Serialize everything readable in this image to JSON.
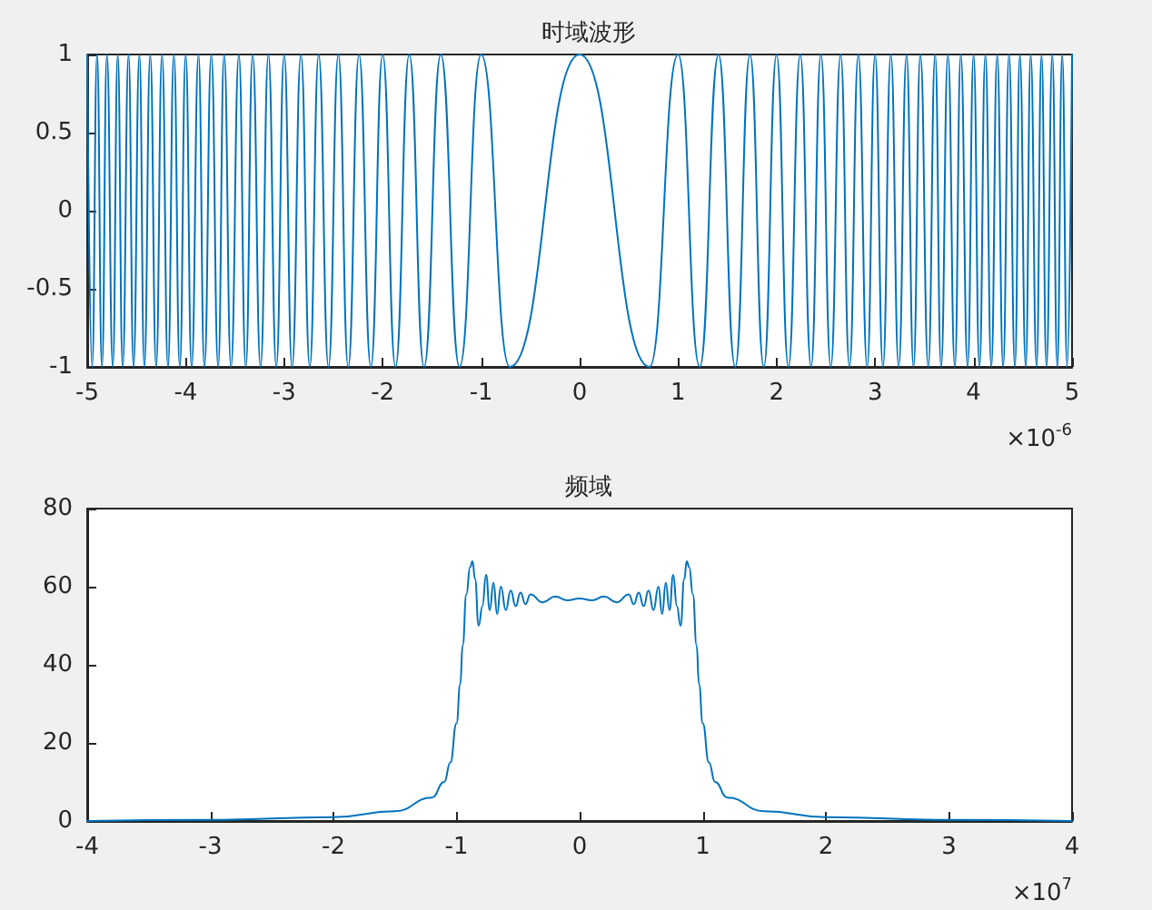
{
  "chart_data": [
    {
      "type": "line",
      "title": "时域波形",
      "annotations": [
        "×10$^{-6}$"
      ],
      "color": "#0072bd",
      "grid": false,
      "marker": "none",
      "line_style": "solid",
      "x": [
        -5,
        -4.95,
        -4.9,
        -4.85,
        -4.8,
        -4.74,
        -4.69,
        -4.64,
        -4.58,
        -4.53,
        -4.47,
        -4.42,
        -4.36,
        -4.3,
        -4.24,
        -4.18,
        -4.12,
        -4.06,
        -4,
        -3.94,
        -3.87,
        -3.81,
        -3.74,
        -3.67,
        -3.61,
        -3.54,
        -3.46,
        -3.39,
        -3.32,
        -3.24,
        -3.16,
        -3.08,
        -3,
        -2.92,
        -2.83,
        -2.74,
        -2.65,
        -2.55,
        -2.45,
        -2.35,
        -2.24,
        -2.12,
        -2,
        -1.87,
        -1.73,
        -1.58,
        -1.41,
        -1.22,
        -1,
        -0.71,
        0,
        0.71,
        1,
        1.22,
        1.41,
        1.58,
        1.73,
        1.87,
        2,
        2.12,
        2.24,
        2.35,
        2.45,
        2.55,
        2.65,
        2.74,
        2.83,
        2.92,
        3,
        3.08,
        3.16,
        3.24,
        3.32,
        3.39,
        3.46,
        3.54,
        3.61,
        3.67,
        3.74,
        3.81,
        3.87,
        3.94,
        4,
        4.06,
        4.12,
        4.18,
        4.24,
        4.3,
        4.36,
        4.42,
        4.47,
        4.53,
        4.58,
        4.64,
        4.69,
        4.74,
        4.8,
        4.85,
        4.9,
        4.95,
        5
      ],
      "values": [
        1,
        -1,
        1,
        -1,
        1,
        -1,
        1,
        -1,
        1,
        -1,
        1,
        -1,
        1,
        -1,
        1,
        -1,
        1,
        -1,
        1,
        -1,
        1,
        -1,
        1,
        -1,
        1,
        -1,
        1,
        -1,
        1,
        -1,
        1,
        -1,
        1,
        -1,
        1,
        -1,
        1,
        -1,
        1,
        -1,
        1,
        -1,
        1,
        -1,
        1,
        -1,
        1,
        -1,
        1,
        -1,
        1,
        -1,
        1,
        -1,
        1,
        -1,
        1,
        -1,
        1,
        -1,
        1,
        -1,
        1,
        -1,
        1,
        -1,
        1,
        -1,
        1,
        -1,
        1,
        -1,
        1,
        -1,
        1,
        -1,
        1,
        -1,
        1,
        -1,
        1,
        -1,
        1,
        -1,
        1,
        -1,
        1,
        -1,
        1,
        -1,
        1,
        -1,
        1,
        -1,
        1,
        -1,
        1,
        -1,
        1,
        -1,
        1
      ],
      "xlim": [
        -5,
        5
      ],
      "xticks": [
        -5,
        -4,
        -3,
        -2,
        -1,
        0,
        1,
        2,
        3,
        4,
        5
      ],
      "ylim": [
        -1,
        1
      ],
      "yticks": [
        -1,
        -0.5,
        0,
        0.5,
        1
      ]
    },
    {
      "type": "line",
      "title": "频域",
      "annotations": [
        "×10$^{7}$"
      ],
      "color": "#0072bd",
      "grid": false,
      "marker": "none",
      "line_style": "solid",
      "x": [
        -4,
        -3,
        -2,
        -1.5,
        -1.2,
        -1.1,
        -1.05,
        -1,
        -0.97,
        -0.95,
        -0.92,
        -0.89,
        -0.87,
        -0.85,
        -0.82,
        -0.79,
        -0.76,
        -0.73,
        -0.7,
        -0.67,
        -0.64,
        -0.6,
        -0.56,
        -0.52,
        -0.48,
        -0.44,
        -0.4,
        -0.3,
        -0.2,
        -0.1,
        0,
        0.1,
        0.2,
        0.3,
        0.4,
        0.44,
        0.48,
        0.52,
        0.56,
        0.6,
        0.64,
        0.67,
        0.7,
        0.73,
        0.76,
        0.79,
        0.82,
        0.85,
        0.87,
        0.89,
        0.92,
        0.95,
        0.97,
        1,
        1.05,
        1.1,
        1.2,
        1.5,
        2,
        3,
        4
      ],
      "values": [
        0,
        0.3,
        1,
        2.5,
        6,
        10,
        15,
        25,
        35,
        45,
        58,
        65,
        66.5,
        62,
        50,
        55,
        63,
        54,
        61,
        53,
        60,
        54,
        59,
        55,
        58.5,
        55.5,
        58,
        56,
        57.5,
        56.5,
        57,
        56.5,
        57.5,
        56,
        58,
        55.5,
        58.5,
        55,
        59,
        54,
        60,
        53,
        61,
        54,
        63,
        55,
        50,
        62,
        66.5,
        65,
        58,
        45,
        35,
        25,
        15,
        10,
        6,
        2.5,
        1,
        0.3,
        0
      ],
      "xlim": [
        -4,
        4
      ],
      "xticks": [
        -4,
        -3,
        -2,
        -1,
        0,
        1,
        2,
        3,
        4
      ],
      "ylim": [
        0,
        80
      ],
      "yticks": [
        0,
        20,
        40,
        60,
        80
      ]
    }
  ]
}
